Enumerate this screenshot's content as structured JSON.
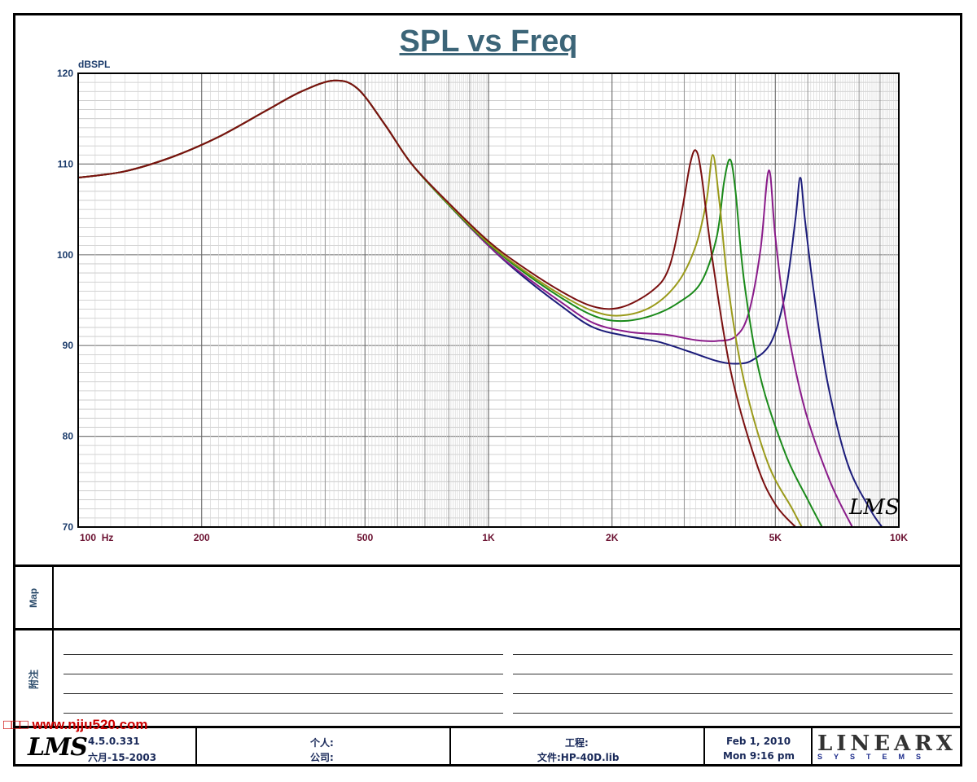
{
  "chart_data": {
    "type": "line",
    "title": "SPL vs Freq",
    "ylabel": "dBSPL",
    "xlabel": "",
    "x_scale": "log",
    "xlim": [
      100,
      10000
    ],
    "ylim": [
      70,
      120
    ],
    "grid": true,
    "y_ticks": [
      "120",
      "110",
      "100",
      "90",
      "80",
      "70"
    ],
    "x_ticks": [
      {
        "value": 100,
        "label": "100  Hz"
      },
      {
        "value": 200,
        "label": "200"
      },
      {
        "value": 500,
        "label": "500"
      },
      {
        "value": 1000,
        "label": "1K"
      },
      {
        "value": 2000,
        "label": "2K"
      },
      {
        "value": 5000,
        "label": "5K"
      },
      {
        "value": 10000,
        "label": "10K"
      }
    ],
    "series": [
      {
        "color": "#1c1c7a",
        "points": [
          [
            100,
            108.5
          ],
          [
            130,
            109.2
          ],
          [
            170,
            110.8
          ],
          [
            220,
            113.0
          ],
          [
            290,
            116.0
          ],
          [
            350,
            118.0
          ],
          [
            420,
            119.2
          ],
          [
            480,
            118.3
          ],
          [
            560,
            114.3
          ],
          [
            650,
            110.0
          ],
          [
            800,
            105.5
          ],
          [
            1000,
            101.0
          ],
          [
            1200,
            97.8
          ],
          [
            1500,
            94.4
          ],
          [
            1800,
            92.0
          ],
          [
            2200,
            91.0
          ],
          [
            2600,
            90.4
          ],
          [
            3100,
            89.3
          ],
          [
            3600,
            88.3
          ],
          [
            4000,
            88.0
          ],
          [
            4400,
            88.4
          ],
          [
            4900,
            90.5
          ],
          [
            5300,
            96.0
          ],
          [
            5600,
            104.0
          ],
          [
            5750,
            108.5
          ],
          [
            5900,
            104.0
          ],
          [
            6200,
            96.0
          ],
          [
            6700,
            86.0
          ],
          [
            7500,
            77.0
          ],
          [
            8500,
            72.0
          ],
          [
            9100,
            70.0
          ]
        ]
      },
      {
        "color": "#8a1c8a",
        "points": [
          [
            100,
            108.5
          ],
          [
            130,
            109.2
          ],
          [
            170,
            110.8
          ],
          [
            220,
            113.0
          ],
          [
            290,
            116.0
          ],
          [
            350,
            118.0
          ],
          [
            420,
            119.2
          ],
          [
            480,
            118.3
          ],
          [
            560,
            114.3
          ],
          [
            650,
            110.0
          ],
          [
            800,
            105.5
          ],
          [
            1000,
            101.0
          ],
          [
            1200,
            98.0
          ],
          [
            1500,
            94.8
          ],
          [
            1800,
            92.5
          ],
          [
            2200,
            91.5
          ],
          [
            2700,
            91.2
          ],
          [
            3200,
            90.6
          ],
          [
            3600,
            90.5
          ],
          [
            4000,
            91.0
          ],
          [
            4300,
            93.5
          ],
          [
            4600,
            100.5
          ],
          [
            4820,
            109.3
          ],
          [
            5000,
            102.0
          ],
          [
            5300,
            93.0
          ],
          [
            5900,
            83.0
          ],
          [
            6800,
            75.0
          ],
          [
            7700,
            70.0
          ]
        ]
      },
      {
        "color": "#1a8a1a",
        "points": [
          [
            100,
            108.5
          ],
          [
            130,
            109.2
          ],
          [
            170,
            110.8
          ],
          [
            220,
            113.0
          ],
          [
            290,
            116.0
          ],
          [
            350,
            118.0
          ],
          [
            420,
            119.2
          ],
          [
            480,
            118.3
          ],
          [
            560,
            114.3
          ],
          [
            650,
            110.0
          ],
          [
            800,
            105.5
          ],
          [
            1000,
            101.2
          ],
          [
            1200,
            98.3
          ],
          [
            1500,
            95.3
          ],
          [
            1800,
            93.3
          ],
          [
            2100,
            92.7
          ],
          [
            2500,
            93.3
          ],
          [
            2900,
            94.7
          ],
          [
            3300,
            97.0
          ],
          [
            3600,
            102.0
          ],
          [
            3750,
            108.0
          ],
          [
            3880,
            110.5
          ],
          [
            4000,
            107.0
          ],
          [
            4200,
            97.0
          ],
          [
            4600,
            86.5
          ],
          [
            5300,
            78.0
          ],
          [
            6000,
            73.0
          ],
          [
            6500,
            70.0
          ]
        ]
      },
      {
        "color": "#9a9a1a",
        "points": [
          [
            100,
            108.5
          ],
          [
            130,
            109.2
          ],
          [
            170,
            110.8
          ],
          [
            220,
            113.0
          ],
          [
            290,
            116.0
          ],
          [
            350,
            118.0
          ],
          [
            420,
            119.2
          ],
          [
            480,
            118.3
          ],
          [
            560,
            114.3
          ],
          [
            650,
            110.0
          ],
          [
            800,
            105.6
          ],
          [
            1000,
            101.3
          ],
          [
            1200,
            98.5
          ],
          [
            1500,
            95.6
          ],
          [
            1800,
            93.8
          ],
          [
            2100,
            93.3
          ],
          [
            2500,
            94.3
          ],
          [
            2900,
            97.0
          ],
          [
            3200,
            101.0
          ],
          [
            3400,
            106.0
          ],
          [
            3520,
            111.0
          ],
          [
            3650,
            106.0
          ],
          [
            3850,
            96.0
          ],
          [
            4200,
            86.0
          ],
          [
            4800,
            77.0
          ],
          [
            5500,
            72.0
          ],
          [
            5800,
            70.0
          ]
        ]
      },
      {
        "color": "#7a1010",
        "points": [
          [
            100,
            108.5
          ],
          [
            130,
            109.2
          ],
          [
            170,
            110.8
          ],
          [
            220,
            113.0
          ],
          [
            290,
            116.0
          ],
          [
            350,
            118.0
          ],
          [
            420,
            119.2
          ],
          [
            480,
            118.3
          ],
          [
            560,
            114.3
          ],
          [
            650,
            110.0
          ],
          [
            800,
            105.7
          ],
          [
            1000,
            101.5
          ],
          [
            1200,
            98.8
          ],
          [
            1500,
            96.0
          ],
          [
            1800,
            94.3
          ],
          [
            2100,
            94.2
          ],
          [
            2500,
            96.0
          ],
          [
            2750,
            98.5
          ],
          [
            2950,
            104.5
          ],
          [
            3100,
            110.0
          ],
          [
            3200,
            111.5
          ],
          [
            3300,
            109.0
          ],
          [
            3500,
            100.0
          ],
          [
            3900,
            87.0
          ],
          [
            4500,
            77.0
          ],
          [
            5000,
            72.5
          ],
          [
            5600,
            70.0
          ]
        ]
      }
    ]
  },
  "map_label": "Map",
  "notes_label": "附注",
  "footer": {
    "version": "4.5.0.331",
    "date_build": "六月-15-2003",
    "person": "个人:",
    "company": "公司:",
    "project": "工程:",
    "file": "文件:HP-40D.lib",
    "date": "Feb  1, 2010",
    "time": "Mon  9:16 pm",
    "logo_left": "LMS",
    "logo_right_big": "LINEARX",
    "logo_right_small": "SYSTEMS"
  },
  "chart_logo": "LMS",
  "watermark": "□□□ www.njju520.com"
}
